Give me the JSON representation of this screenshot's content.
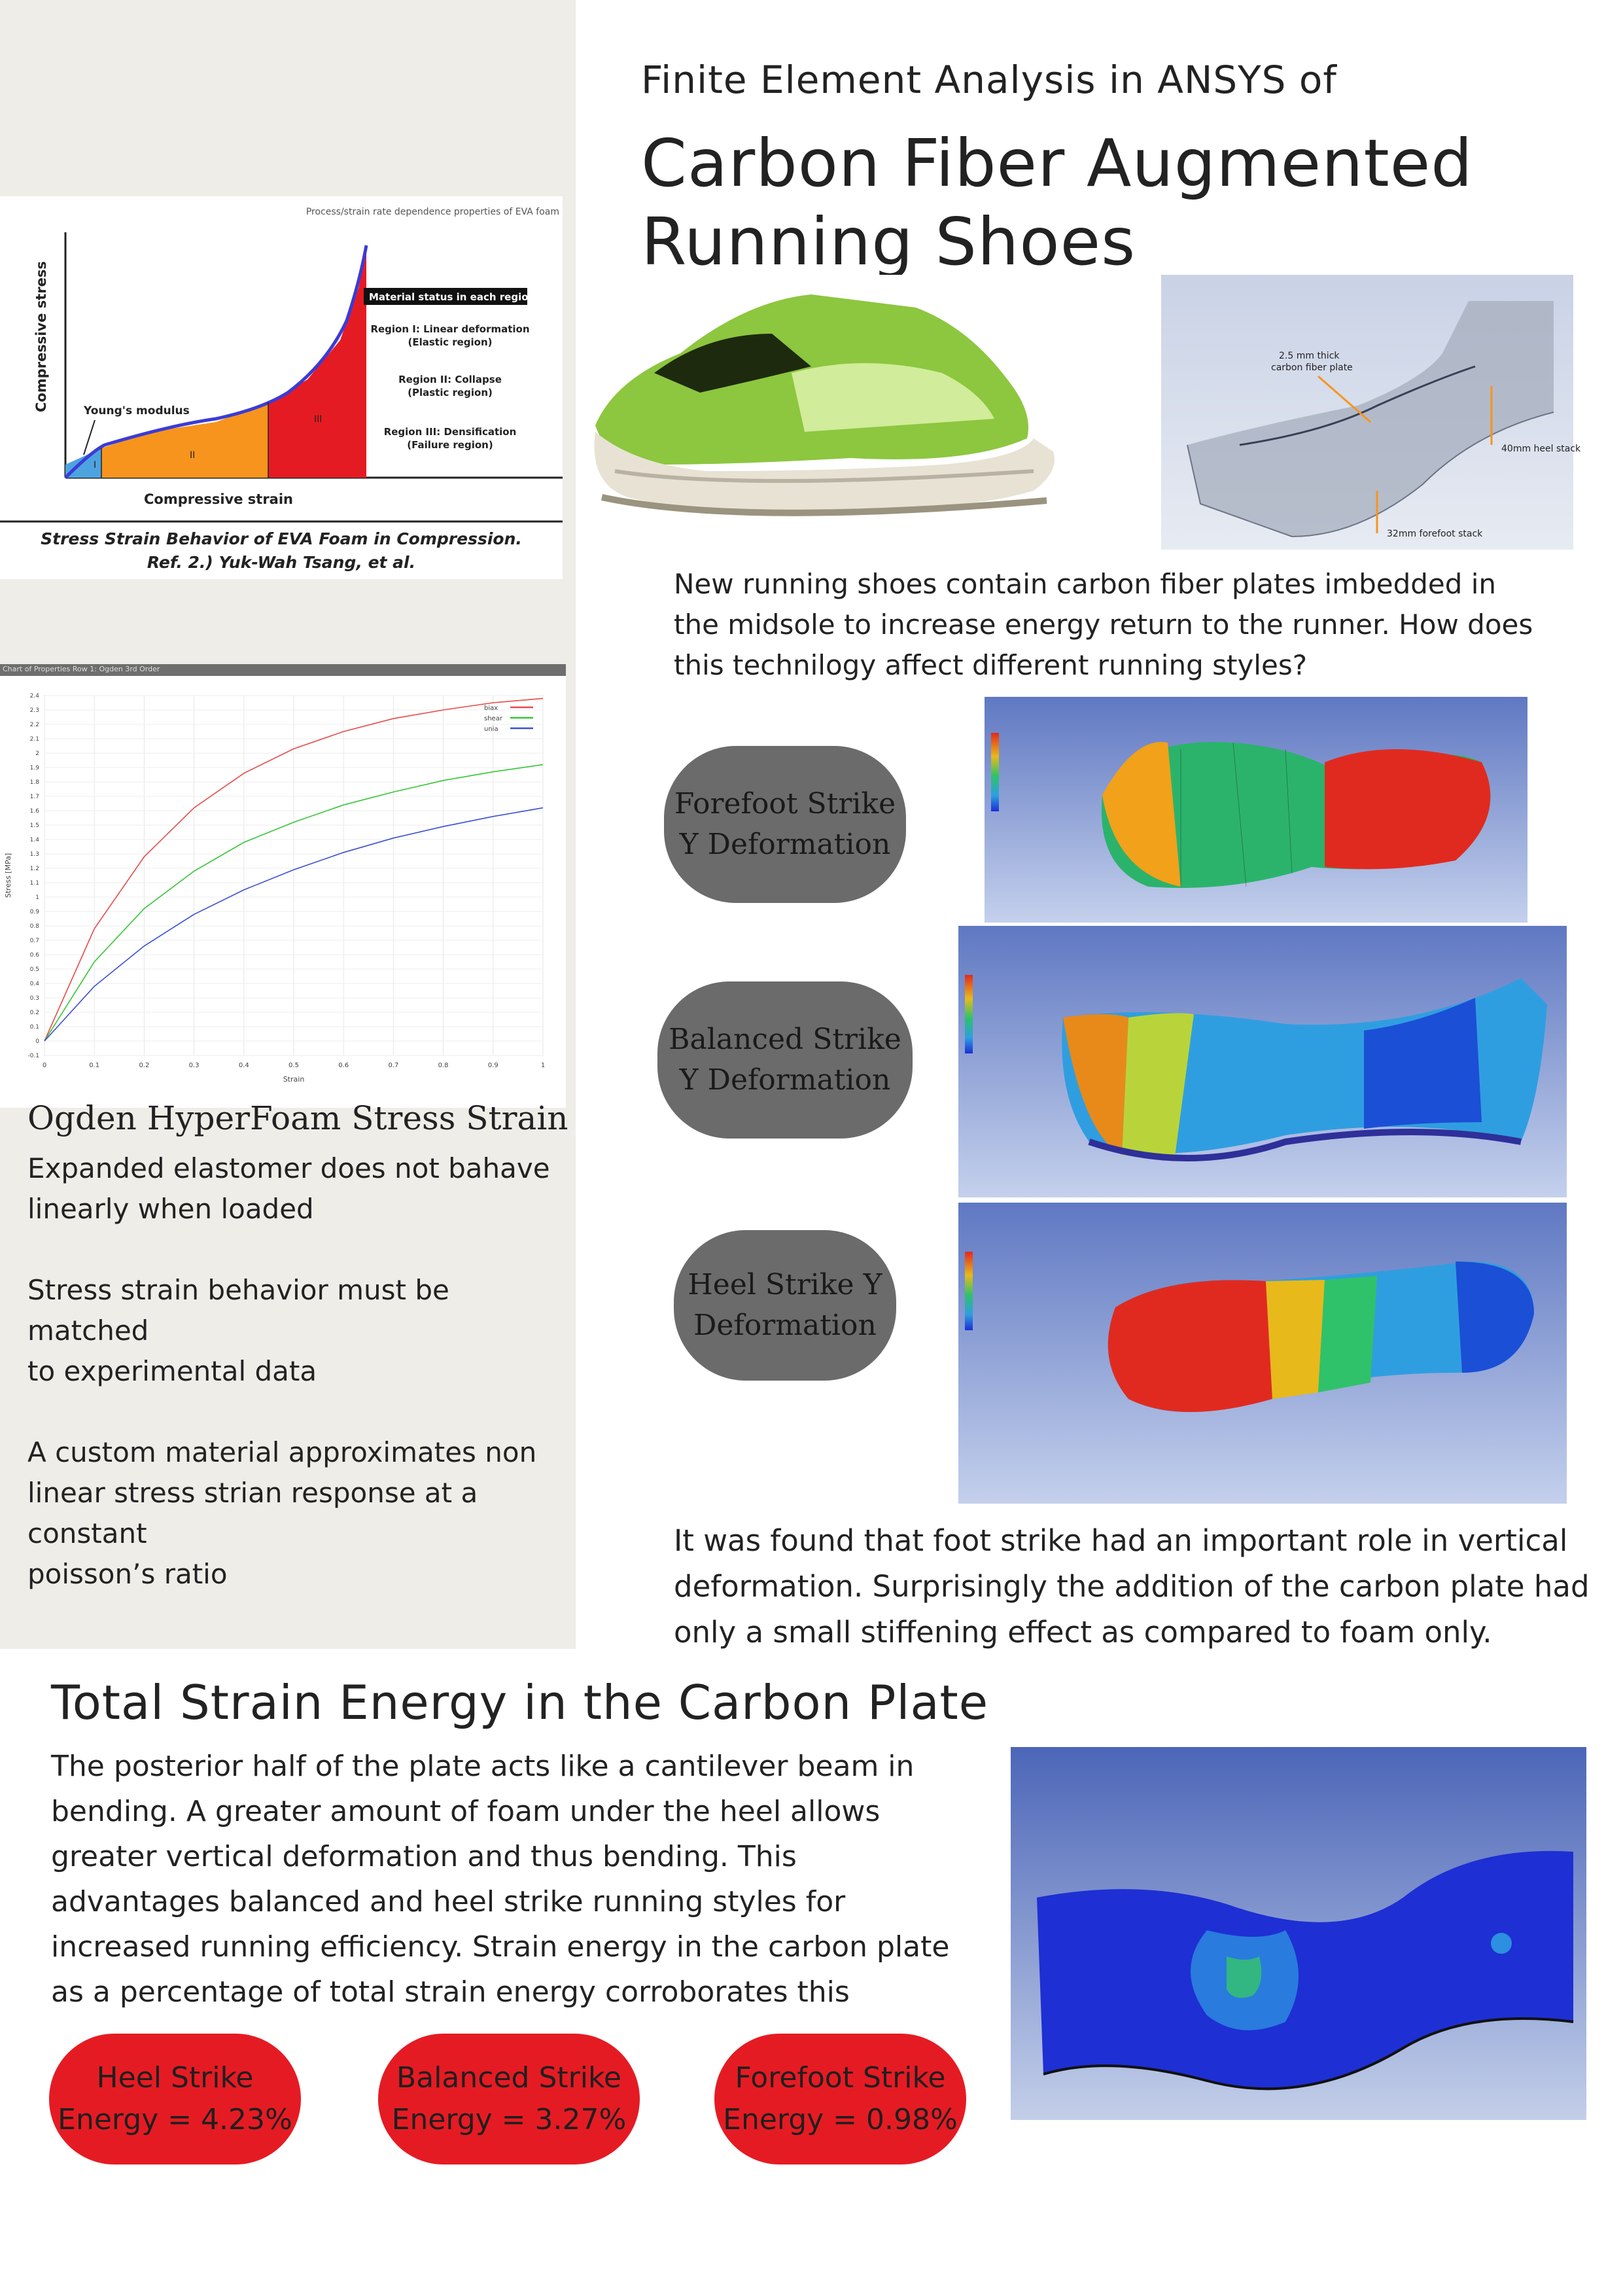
{
  "header": {
    "subtitle": "Finite Element Analysis in ANSYS  of",
    "title_line1": "Carbon Fiber Augmented",
    "title_line2": "Running Shoes"
  },
  "eva_figure": {
    "top_caption": "Process/strain rate dependence properties of EVA foam",
    "ylabel": "Compressive stress",
    "xlabel": "Compressive strain",
    "youngs": "Young's modulus",
    "legend_title": "Material status in each region",
    "region1": "Region I: Linear deformation",
    "region1b": "(Elastic region)",
    "region2": "Region II: Collapse",
    "region2b": "(Plastic region)",
    "region3": "Region III: Densification",
    "region3b": "(Failure region)",
    "label_i": "I",
    "label_ii": "II",
    "label_iii": "III",
    "caption_line1": "Stress Strain Behavior of EVA Foam in Compression.",
    "caption_line2": "Ref. 2.) Yuk-Wah Tsang, et al.",
    "colors": {
      "region1": "#4da3e0",
      "region2": "#f7941d",
      "region3": "#e51b23",
      "curve": "#3b3bd6"
    }
  },
  "shoe_model": {
    "plate_label": "2.5 mm thick",
    "plate_label2": "carbon fiber plate",
    "heel_label": "40mm heel stack",
    "forefoot_label": "32mm forefoot stack"
  },
  "intro_text": {
    "line1": "New running shoes contain carbon fiber plates imbedded in",
    "line2": "the midsole to increase energy return to the runner. How does",
    "line3": "this technilogy affect different running styles?"
  },
  "ogden_chart": {
    "window_title": "Chart of Properties Row 1: Ogden 3rd Order",
    "xlabel": "Strain",
    "ylabel": "Stress [MPa]",
    "legend": [
      "biax",
      "shear",
      "unia"
    ]
  },
  "chart_data": {
    "type": "line",
    "xlabel": "Strain",
    "ylabel": "Stress [MPa]",
    "xlim": [
      0,
      1
    ],
    "ylim": [
      -0.1,
      2.4
    ],
    "x_ticks": [
      "0",
      "0.1",
      "0.2",
      "0.3",
      "0.4",
      "0.5",
      "0.6",
      "0.7",
      "0.8",
      "0.9",
      "1"
    ],
    "y_ticks": [
      "-0.1",
      "0",
      "0.1",
      "0.2",
      "0.3",
      "0.4",
      "0.5",
      "0.6",
      "0.7",
      "0.8",
      "0.9",
      "1",
      "1.1",
      "1.2",
      "1.3",
      "1.4",
      "1.5",
      "1.6",
      "1.7",
      "1.8",
      "1.9",
      "2",
      "2.1",
      "2.2",
      "2.3",
      "2.4"
    ],
    "x": [
      0,
      0.1,
      0.2,
      0.3,
      0.4,
      0.5,
      0.6,
      0.7,
      0.8,
      0.9,
      1.0
    ],
    "series": [
      {
        "name": "biax",
        "color": "#e84a4a",
        "values": [
          0,
          0.78,
          1.28,
          1.62,
          1.86,
          2.03,
          2.15,
          2.24,
          2.3,
          2.35,
          2.38
        ]
      },
      {
        "name": "shear",
        "color": "#35c635",
        "values": [
          0,
          0.55,
          0.92,
          1.18,
          1.38,
          1.52,
          1.64,
          1.73,
          1.81,
          1.87,
          1.92
        ]
      },
      {
        "name": "unia",
        "color": "#3a4ed6",
        "values": [
          0,
          0.38,
          0.66,
          0.88,
          1.05,
          1.19,
          1.31,
          1.41,
          1.49,
          1.56,
          1.62
        ]
      }
    ]
  },
  "side_text": {
    "heading": "Ogden HyperFoam Stress Strain",
    "p1_line1": "Expanded elastomer does not bahave",
    "p1_line2": "linearly when loaded",
    "p2_line1": "Stress strain behavior must be matched",
    "p2_line2": "to experimental data",
    "p3_line1": "A custom material approximates non",
    "p3_line2": "linear stress strian response at a constant",
    "p3_line3": "poisson’s ratio"
  },
  "strike_pills": {
    "forefoot_line1": "Forefoot Strike",
    "forefoot_line2": "Y Deformation",
    "balanced_line1": "Balanced Strike",
    "balanced_line2": "Y Deformation",
    "heel_line1": "Heel Strike Y",
    "heel_line2": "Deformation"
  },
  "conclusion_text": {
    "line1": "It was found that foot strike had an important role in vertical",
    "line2": "deformation. Surprisingly the addition of the carbon plate had",
    "line3": "only a small stiffening effect as compared to foam only."
  },
  "energy_section": {
    "title": "Total Strain Energy in the Carbon Plate",
    "line1": "The posterior half of the plate acts like a cantilever beam in",
    "line2": "bending. A greater amount of foam under the heel allows",
    "line3": "greater vertical deformation and thus bending. This",
    "line4": "advantages balanced and heel strike running styles for",
    "line5": "increased running efficiency. Strain energy in the carbon plate",
    "line6": "as a percentage of total strain energy corroborates this"
  },
  "energy_pills": {
    "heel_line1": "Heel Strike",
    "heel_line2": "Energy = 4.23%",
    "balanced_line1": "Balanced Strike",
    "balanced_line2": "Energy = 3.27%",
    "forefoot_line1": "Forefoot Strike",
    "forefoot_line2": "Energy = 0.98%"
  },
  "colors": {
    "sidebar_bg": "#efede8",
    "pill_gray": "#6b6b6b",
    "pill_red": "#e51b23",
    "ansys_bg": "#6f86c9"
  }
}
